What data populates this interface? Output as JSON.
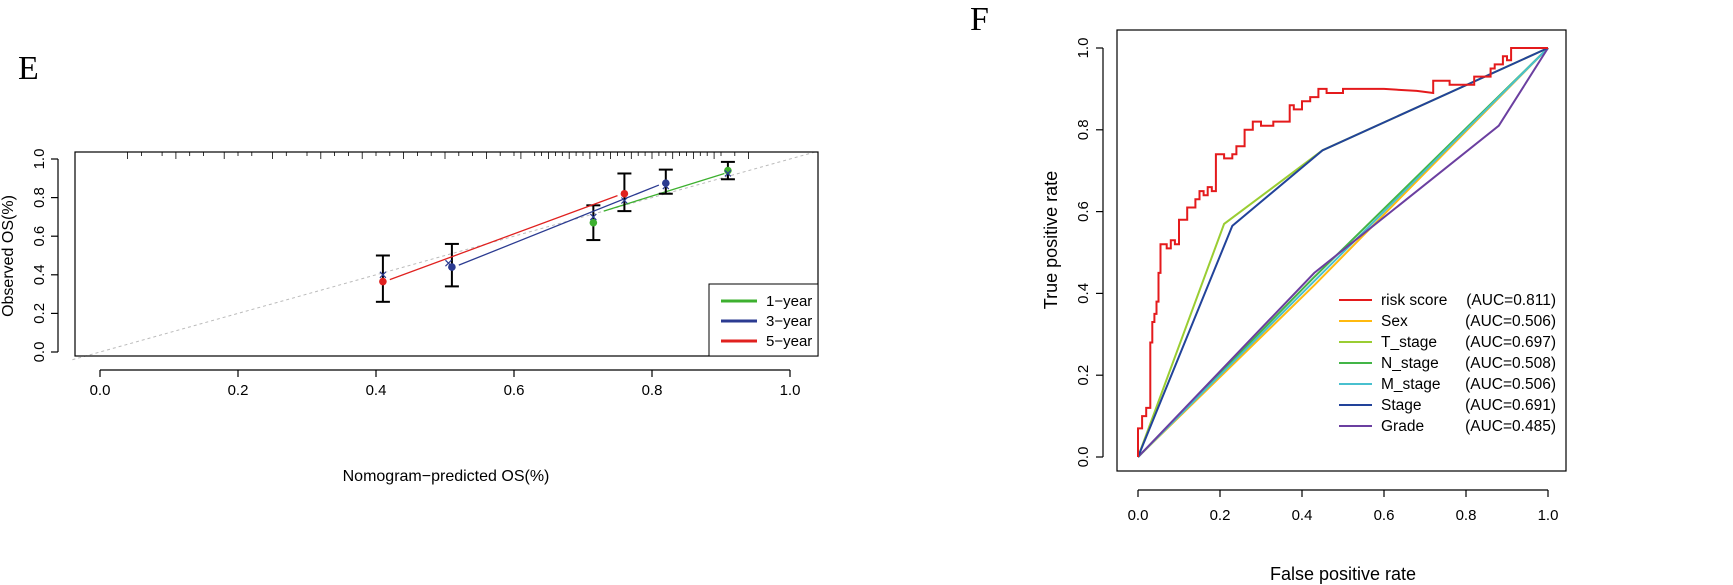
{
  "chart_data": [
    {
      "panel": "E",
      "type": "line",
      "title": "",
      "xlabel": "Nomogram−predicted OS(%)",
      "ylabel": "Observed OS(%)",
      "xlim": [
        -0.04,
        1.04
      ],
      "ylim": [
        -0.02,
        1.03
      ],
      "xticks": [
        "0.0",
        "0.2",
        "0.4",
        "0.6",
        "0.8",
        "1.0"
      ],
      "yticks": [
        "0.0",
        "0.2",
        "0.4",
        "0.6",
        "0.8",
        "1.0"
      ],
      "reference_line": {
        "x": [
          -0.04,
          1.04
        ],
        "y": [
          -0.04,
          1.04
        ],
        "color": "#bbbbbb"
      },
      "legend": {
        "position": "bottom-right",
        "entries": [
          "1−year",
          "3−year",
          "5−year"
        ]
      },
      "series": [
        {
          "name": "1−year",
          "color": "#3db02f",
          "points": [
            {
              "x": 0.715,
              "y": 0.67,
              "lo": 0.58,
              "hi": 0.76
            },
            {
              "x": 0.91,
              "y": 0.94,
              "lo": 0.895,
              "hi": 0.985
            }
          ],
          "segments": [
            [
              0.73,
              0.73,
              0.905,
              0.925
            ]
          ]
        },
        {
          "name": "3−year",
          "color": "#2b3b91",
          "points": [
            {
              "x": 0.51,
              "y": 0.44,
              "lo": 0.34,
              "hi": 0.56
            },
            {
              "x": 0.82,
              "y": 0.875,
              "lo": 0.82,
              "hi": 0.945
            }
          ],
          "segments": [
            [
              0.52,
              0.45,
              0.81,
              0.865
            ]
          ]
        },
        {
          "name": "5−year",
          "color": "#e0211f",
          "points": [
            {
              "x": 0.41,
              "y": 0.365,
              "lo": 0.26,
              "hi": 0.5
            },
            {
              "x": 0.76,
              "y": 0.82,
              "lo": 0.73,
              "hi": 0.925
            }
          ],
          "segments": [
            [
              0.42,
              0.375,
              0.75,
              0.81
            ]
          ]
        }
      ],
      "observed_markers": [
        {
          "x": 0.41,
          "y": 0.4
        },
        {
          "x": 0.505,
          "y": 0.46
        },
        {
          "x": 0.715,
          "y": 0.7
        },
        {
          "x": 0.76,
          "y": 0.785
        },
        {
          "x": 0.82,
          "y": 0.86
        },
        {
          "x": 0.91,
          "y": 0.925
        }
      ],
      "rug_x": [
        0.04,
        0.06,
        0.09,
        0.11,
        0.13,
        0.15,
        0.18,
        0.2,
        0.22,
        0.25,
        0.27,
        0.3,
        0.32,
        0.34,
        0.36,
        0.38,
        0.4,
        0.42,
        0.44,
        0.46,
        0.48,
        0.5,
        0.52,
        0.54,
        0.56,
        0.58,
        0.6,
        0.61,
        0.63,
        0.64,
        0.65,
        0.66,
        0.67,
        0.68,
        0.69,
        0.7,
        0.71,
        0.72,
        0.73,
        0.74,
        0.75,
        0.76,
        0.77,
        0.78,
        0.79,
        0.8,
        0.81,
        0.82,
        0.83,
        0.84,
        0.85,
        0.86,
        0.87,
        0.88,
        0.89,
        0.9,
        0.92,
        0.94
      ]
    },
    {
      "panel": "F",
      "type": "line",
      "title": "",
      "xlabel": "False positive rate",
      "ylabel": "True positive rate",
      "xlim": [
        -0.04,
        1.04
      ],
      "ylim": [
        -0.04,
        1.04
      ],
      "xticks": [
        "0.0",
        "0.2",
        "0.4",
        "0.6",
        "0.8",
        "1.0"
      ],
      "yticks": [
        "0.0",
        "0.2",
        "0.4",
        "0.6",
        "0.8",
        "1.0"
      ],
      "reference_line": {
        "x": [
          0,
          1
        ],
        "y": [
          0,
          1
        ],
        "color": "#000000"
      },
      "legend": {
        "position": "bottom-right"
      },
      "series": [
        {
          "name": "risk score",
          "auc": "(AUC=0.811)",
          "color": "#e41a1c",
          "x": [
            0,
            0,
            0.01,
            0.01,
            0.02,
            0.02,
            0.03,
            0.03,
            0.035,
            0.035,
            0.04,
            0.04,
            0.045,
            0.045,
            0.05,
            0.05,
            0.055,
            0.055,
            0.07,
            0.07,
            0.08,
            0.08,
            0.09,
            0.09,
            0.1,
            0.1,
            0.12,
            0.12,
            0.14,
            0.14,
            0.15,
            0.15,
            0.16,
            0.16,
            0.17,
            0.17,
            0.18,
            0.18,
            0.19,
            0.19,
            0.21,
            0.21,
            0.23,
            0.23,
            0.24,
            0.24,
            0.26,
            0.26,
            0.28,
            0.28,
            0.3,
            0.3,
            0.33,
            0.33,
            0.37,
            0.37,
            0.38,
            0.38,
            0.4,
            0.4,
            0.42,
            0.42,
            0.44,
            0.44,
            0.46,
            0.46,
            0.5,
            0.5,
            0.56,
            0.6,
            0.68,
            0.72,
            0.72,
            0.76,
            0.76,
            0.82,
            0.82,
            0.86,
            0.86,
            0.87,
            0.87,
            0.89,
            0.89,
            0.9,
            0.9,
            0.91,
            0.91,
            0.93,
            0.93,
            1.0
          ],
          "y": [
            0,
            0.07,
            0.07,
            0.1,
            0.1,
            0.12,
            0.12,
            0.28,
            0.28,
            0.33,
            0.33,
            0.35,
            0.35,
            0.38,
            0.38,
            0.45,
            0.45,
            0.52,
            0.52,
            0.51,
            0.51,
            0.53,
            0.53,
            0.52,
            0.52,
            0.58,
            0.58,
            0.61,
            0.61,
            0.63,
            0.63,
            0.65,
            0.65,
            0.64,
            0.64,
            0.66,
            0.66,
            0.65,
            0.65,
            0.74,
            0.74,
            0.73,
            0.73,
            0.74,
            0.74,
            0.76,
            0.76,
            0.8,
            0.8,
            0.82,
            0.82,
            0.81,
            0.81,
            0.82,
            0.82,
            0.86,
            0.86,
            0.85,
            0.85,
            0.87,
            0.87,
            0.88,
            0.88,
            0.9,
            0.9,
            0.89,
            0.89,
            0.9,
            0.9,
            0.9,
            0.895,
            0.89,
            0.92,
            0.92,
            0.91,
            0.91,
            0.93,
            0.93,
            0.95,
            0.95,
            0.96,
            0.96,
            0.98,
            0.98,
            0.97,
            0.97,
            1.0,
            1.0,
            1.0,
            1.0
          ]
        },
        {
          "name": "Sex",
          "auc": "(AUC=0.506)",
          "color": "#ffb90f",
          "x": [
            0,
            0.43,
            1.0
          ],
          "y": [
            0,
            0.42,
            1.0
          ]
        },
        {
          "name": "T_stage",
          "auc": "(AUC=0.697)",
          "color": "#9acd32",
          "x": [
            0,
            0.21,
            0.45,
            1.0
          ],
          "y": [
            0,
            0.57,
            0.75,
            1.0
          ]
        },
        {
          "name": "N_stage",
          "auc": "(AUC=0.508)",
          "color": "#43b547",
          "x": [
            0,
            0.43,
            1.0
          ],
          "y": [
            0,
            0.44,
            1.0
          ]
        },
        {
          "name": "M_stage",
          "auc": "(AUC=0.506)",
          "color": "#48c0cf",
          "x": [
            0,
            0.43,
            1.0
          ],
          "y": [
            0,
            0.43,
            1.0
          ]
        },
        {
          "name": "Stage",
          "auc": "(AUC=0.691)",
          "color": "#22439a",
          "x": [
            0,
            0.23,
            0.45,
            1.0
          ],
          "y": [
            0,
            0.565,
            0.75,
            1.0
          ]
        },
        {
          "name": "Grade",
          "auc": "(AUC=0.485)",
          "color": "#6b3fa0",
          "x": [
            0,
            0.43,
            0.88,
            1.0
          ],
          "y": [
            0,
            0.45,
            0.81,
            1.0
          ]
        }
      ]
    }
  ]
}
